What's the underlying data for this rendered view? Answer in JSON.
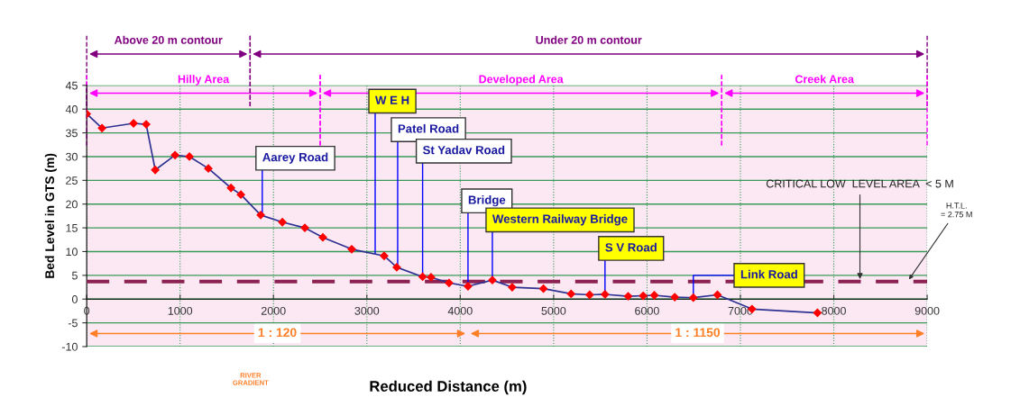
{
  "chart_data": {
    "type": "line",
    "xlabel": "Reduced Distance (m)",
    "ylabel": "Bed Level in GTS (m)",
    "x": [
      0,
      164,
      502,
      637,
      734,
      946,
      1100,
      1303,
      1545,
      1651,
      1863,
      2095,
      2336,
      2529,
      2838,
      3185,
      3320,
      3597,
      3687,
      3880,
      4083,
      4344,
      4556,
      4891,
      5187,
      5386,
      5550,
      5798,
      5959,
      6078,
      6297,
      6496,
      6754,
      7124,
      7825
    ],
    "series": [
      {
        "color": "#2e3192",
        "values": [
          39,
          36,
          37,
          36.8,
          27.2,
          30.3,
          30,
          27.5,
          23.4,
          22,
          17.7,
          16.2,
          15,
          13,
          10.5,
          9.1,
          6.7,
          4.7,
          4.6,
          3.4,
          2.7,
          4,
          2.5,
          2.2,
          1.1,
          0.9,
          1,
          0.6,
          0.7,
          0.8,
          0.4,
          0.3,
          0.9,
          -2.1,
          -2.9
        ]
      }
    ],
    "marker": "diamond",
    "line_style": "solid",
    "xlim": [
      0,
      9000
    ],
    "xticks": [
      0,
      1000,
      2000,
      3000,
      4000,
      5000,
      6000,
      7000,
      8000,
      9000
    ],
    "ylim": [
      -10,
      45
    ],
    "yticks": [
      -10,
      -5,
      0,
      5,
      10,
      15,
      20,
      25,
      30,
      35,
      40,
      45
    ],
    "grid": true,
    "ref_lines": [
      {
        "axis": "y",
        "value": 3.7,
        "color": "#8b2252",
        "line_style": "dashed"
      }
    ],
    "bands": [
      {
        "axis": "x",
        "from": 0,
        "to": 1750,
        "label": "Above 20 m contour",
        "color": "#800080"
      },
      {
        "axis": "x",
        "from": 1750,
        "to": 9000,
        "label": "Under 20 m contour",
        "color": "#800080"
      },
      {
        "axis": "x",
        "from": 0,
        "to": 2500,
        "label": "Hilly Area",
        "color": "#ff00ff"
      },
      {
        "axis": "x",
        "from": 2500,
        "to": 6800,
        "label": "Developed Area",
        "color": "#ff00ff"
      },
      {
        "axis": "x",
        "from": 6800,
        "to": 9000,
        "label": "Creek Area",
        "color": "#ff00ff"
      },
      {
        "axis": "x",
        "from": 0,
        "to": 4083,
        "label": "1 : 120",
        "color": "#ff7f27"
      },
      {
        "axis": "x",
        "from": 4083,
        "to": 9000,
        "label": "1 : 1150",
        "color": "#ff7f27"
      }
    ],
    "annotations": [
      {
        "text": "Aarey Road",
        "x": 1880,
        "y": 17.7
      },
      {
        "text": "W E H",
        "x": 3089,
        "y": 9.5
      },
      {
        "text": "Patel Road",
        "x": 3330,
        "y": 6.7
      },
      {
        "text": "St Yadav Road",
        "x": 3597,
        "y": 4.7
      },
      {
        "text": "Bridge",
        "x": 4083,
        "y": 2.7
      },
      {
        "text": "Western Railway Bridge",
        "x": 4344,
        "y": 4
      },
      {
        "text": "S V Road",
        "x": 5550,
        "y": 1
      },
      {
        "text": "Link Road",
        "x": 6496,
        "y": 0.3
      },
      {
        "text": "CRITICAL LOW  LEVEL AREA  < 5 M",
        "x": 8280,
        "y": 3.7
      },
      {
        "text": "H.T.L.\n= 2.75 M",
        "x": 8790,
        "y": 3.7
      },
      "RIVER\nGRADIENT"
    ]
  }
}
